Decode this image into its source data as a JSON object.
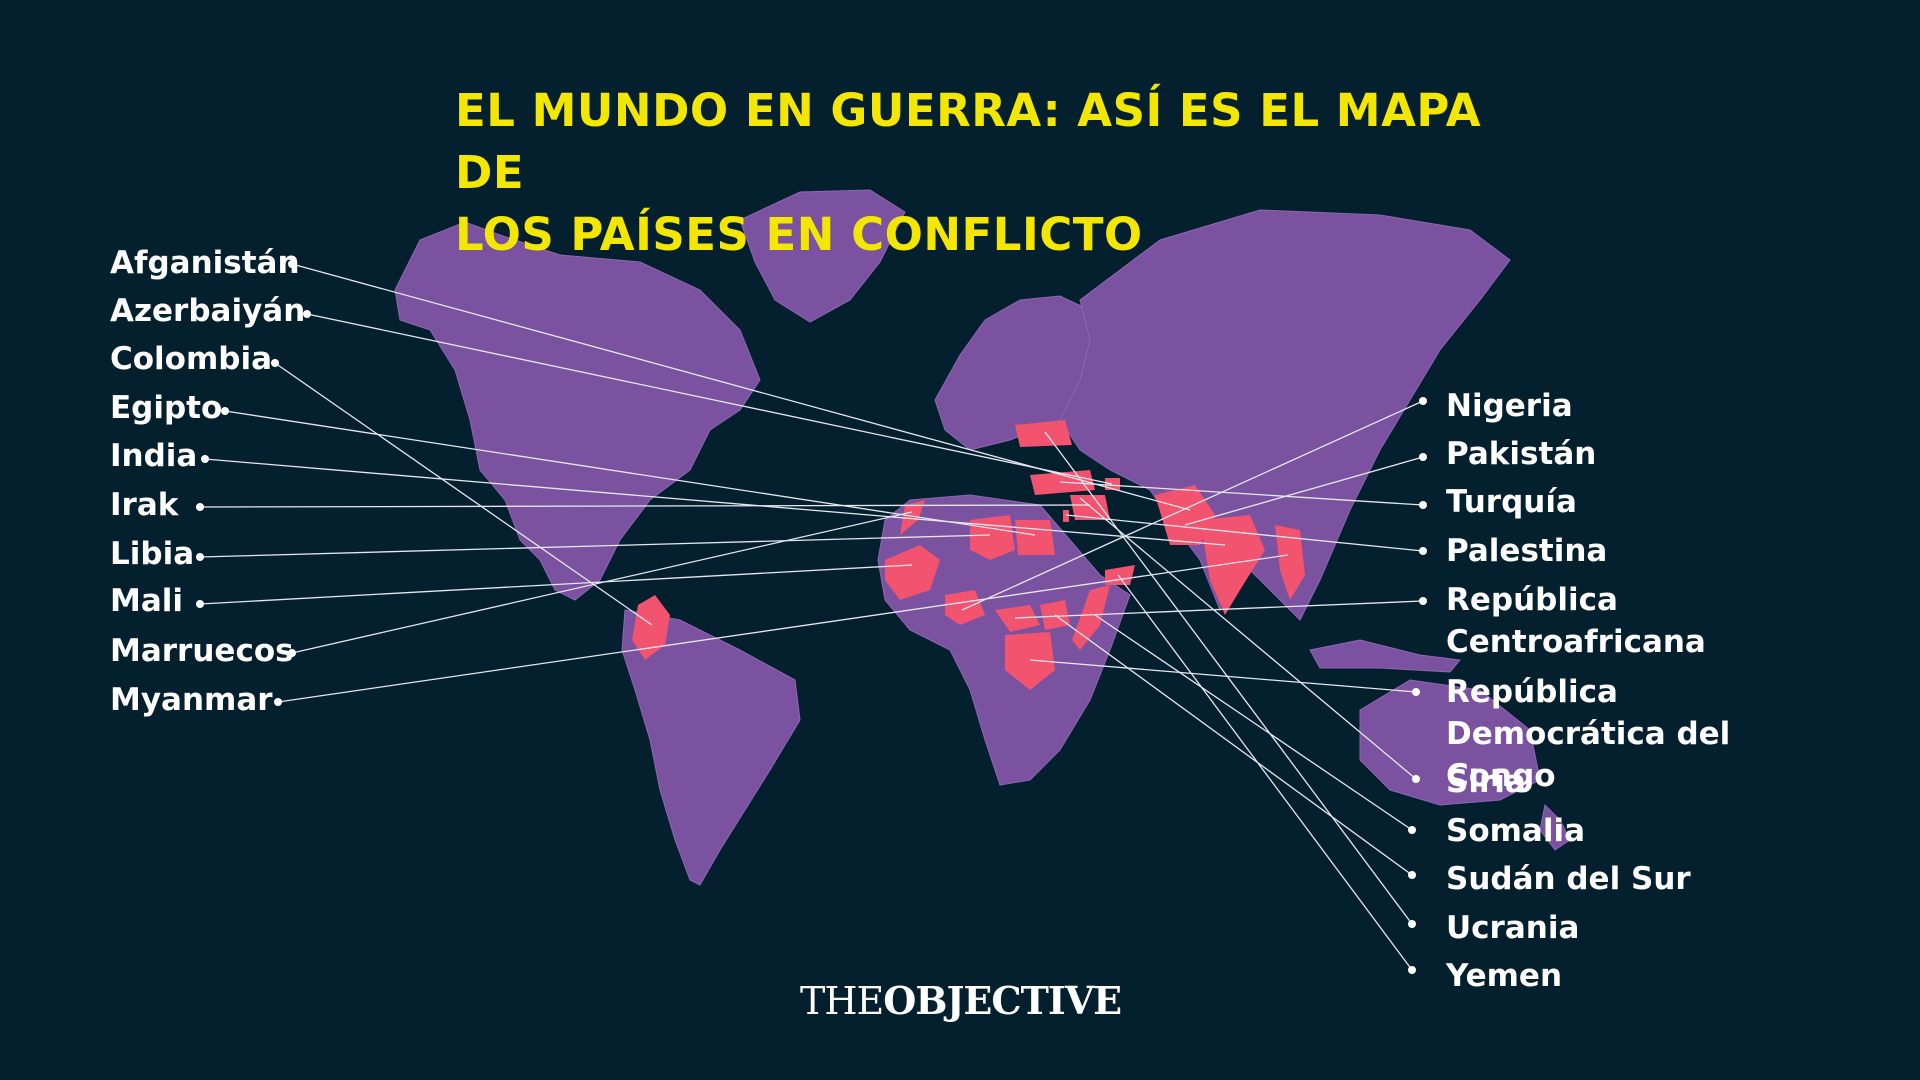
{
  "title_line1": "EL MUNDO EN GUERRA: ASÍ ES EL MAPA DE",
  "title_line2": "LOS PAÍSES EN CONFLICTO",
  "left_countries": [
    "Afganistán",
    "Azerbaiyán",
    "Colombia",
    "Egipto",
    "India",
    "Irak",
    "Libia",
    "Mali",
    "Marruecos",
    "Myanmar"
  ],
  "right_countries": [
    "Nigeria",
    "Pakistán",
    "Turquía",
    "Palestina",
    "República Centroafricana",
    "República Democrática del Congo",
    "Siria",
    "Somalia",
    "Sudán del Sur",
    "Ucrania",
    "Yemen"
  ],
  "logo": {
    "part1": "THE",
    "part2": "OBJECTIVE"
  },
  "colors": {
    "background": "#04202f",
    "land": "#7a52a0",
    "conflict": "#f2536e",
    "title": "#f3e600",
    "text": "#ffffff"
  }
}
